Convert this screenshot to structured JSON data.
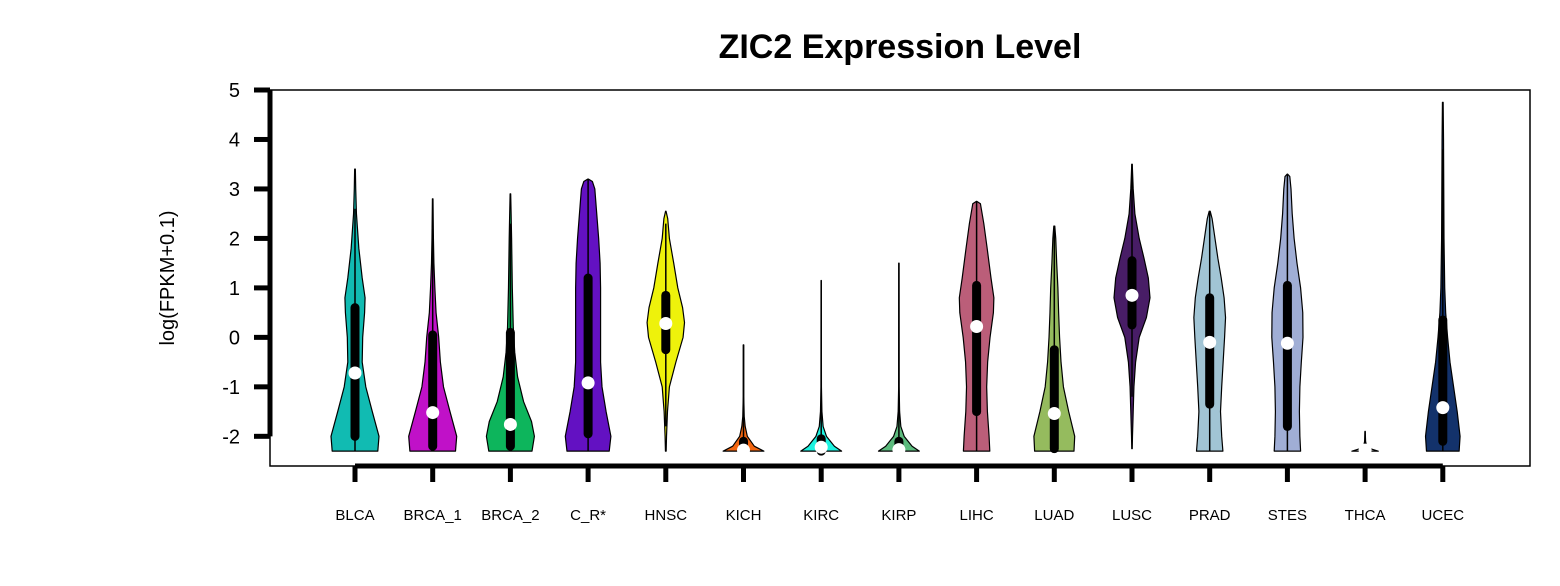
{
  "chart_data": {
    "type": "violin",
    "title": "ZIC2 Expression Level",
    "ylabel": "log(FPKM+0.1)",
    "xlabel": "",
    "ylim": [
      -2.6,
      5
    ],
    "yticks": [
      -2,
      -1,
      0,
      1,
      2,
      3,
      4,
      5
    ],
    "grid": false,
    "categories": [
      "BLCA",
      "BRCA_1",
      "BRCA_2",
      "C_R*",
      "HNSC",
      "KICH",
      "KIRC",
      "KIRP",
      "LIHC",
      "LUAD",
      "LUSC",
      "PRAD",
      "STES",
      "THCA",
      "UCEC"
    ],
    "series": [
      {
        "category": "BLCA",
        "color": "#11bbb2",
        "min": -2.3,
        "max": 3.4,
        "q1": -2.0,
        "q3": 0.6,
        "median": -0.72,
        "whisker_low": -2.3,
        "whisker_high": 2.6,
        "profile": [
          [
            -2.3,
            0.95
          ],
          [
            -2.0,
            1.0
          ],
          [
            -1.5,
            0.72
          ],
          [
            -1.0,
            0.45
          ],
          [
            -0.5,
            0.3
          ],
          [
            0,
            0.32
          ],
          [
            0.5,
            0.4
          ],
          [
            0.8,
            0.42
          ],
          [
            1.2,
            0.3
          ],
          [
            1.8,
            0.16
          ],
          [
            2.5,
            0.06
          ],
          [
            3.0,
            0.03
          ],
          [
            3.4,
            0.015
          ]
        ]
      },
      {
        "category": "BRCA_1",
        "color": "#c011c8",
        "min": -2.3,
        "max": 2.8,
        "q1": -2.2,
        "q3": 0.05,
        "median": -1.52,
        "whisker_low": -2.3,
        "whisker_high": 2.2,
        "profile": [
          [
            -2.3,
            0.95
          ],
          [
            -2.0,
            1.0
          ],
          [
            -1.5,
            0.72
          ],
          [
            -1.0,
            0.45
          ],
          [
            -0.5,
            0.32
          ],
          [
            0,
            0.25
          ],
          [
            0.5,
            0.14
          ],
          [
            1.0,
            0.09
          ],
          [
            1.5,
            0.05
          ],
          [
            2.0,
            0.03
          ],
          [
            2.8,
            0.012
          ]
        ]
      },
      {
        "category": "BRCA_2",
        "color": "#0db55c",
        "min": -2.3,
        "max": 2.9,
        "q1": -2.2,
        "q3": 0.1,
        "median": -1.76,
        "whisker_low": -2.3,
        "whisker_high": 2.3,
        "profile": [
          [
            -2.3,
            0.9
          ],
          [
            -2.0,
            1.0
          ],
          [
            -1.7,
            0.88
          ],
          [
            -1.3,
            0.55
          ],
          [
            -0.8,
            0.3
          ],
          [
            -0.3,
            0.18
          ],
          [
            0.2,
            0.12
          ],
          [
            1.0,
            0.08
          ],
          [
            2.0,
            0.05
          ],
          [
            2.5,
            0.03
          ],
          [
            2.9,
            0.012
          ]
        ]
      },
      {
        "category": "C_R*",
        "color": "#6311c2",
        "min": -2.3,
        "max": 3.2,
        "q1": -1.95,
        "q3": 1.2,
        "median": -0.92,
        "whisker_low": -2.3,
        "whisker_high": 3.2,
        "profile": [
          [
            -2.3,
            0.88
          ],
          [
            -2.0,
            0.95
          ],
          [
            -1.5,
            0.75
          ],
          [
            -1.0,
            0.58
          ],
          [
            -0.5,
            0.52
          ],
          [
            0,
            0.52
          ],
          [
            0.5,
            0.52
          ],
          [
            1.0,
            0.52
          ],
          [
            1.5,
            0.5
          ],
          [
            2.0,
            0.44
          ],
          [
            2.5,
            0.36
          ],
          [
            3.0,
            0.28
          ],
          [
            3.15,
            0.18
          ],
          [
            3.2,
            0.01
          ]
        ]
      },
      {
        "category": "HNSC",
        "color": "#eef20b",
        "min": -2.3,
        "max": 2.55,
        "q1": -0.25,
        "q3": 0.85,
        "median": 0.28,
        "whisker_low": -1.8,
        "whisker_high": 2.3,
        "profile": [
          [
            -2.3,
            0.015
          ],
          [
            -2.0,
            0.03
          ],
          [
            -1.5,
            0.07
          ],
          [
            -1.0,
            0.15
          ],
          [
            -0.5,
            0.42
          ],
          [
            0,
            0.72
          ],
          [
            0.3,
            0.78
          ],
          [
            0.6,
            0.7
          ],
          [
            1.0,
            0.5
          ],
          [
            1.5,
            0.33
          ],
          [
            2.0,
            0.15
          ],
          [
            2.4,
            0.08
          ],
          [
            2.55,
            0.01
          ]
        ]
      },
      {
        "category": "KICH",
        "color": "#f26611",
        "min": -2.3,
        "max": -0.15,
        "q1": -2.3,
        "q3": -2.1,
        "median": -2.28,
        "whisker_low": -2.3,
        "whisker_high": -0.15,
        "profile": [
          [
            -2.3,
            0.85
          ],
          [
            -2.2,
            0.45
          ],
          [
            -2.0,
            0.16
          ],
          [
            -1.8,
            0.07
          ],
          [
            -1.6,
            0.03
          ],
          [
            -1.2,
            0.01
          ],
          [
            -0.15,
            0.008
          ]
        ]
      },
      {
        "category": "KIRC",
        "color": "#1df2e0",
        "min": -2.3,
        "max": 1.15,
        "q1": -2.3,
        "q3": -2.05,
        "median": -2.22,
        "whisker_low": -2.3,
        "whisker_high": 1.15,
        "profile": [
          [
            -2.3,
            0.85
          ],
          [
            -2.2,
            0.55
          ],
          [
            -2.0,
            0.22
          ],
          [
            -1.8,
            0.08
          ],
          [
            -1.5,
            0.03
          ],
          [
            -1.0,
            0.01
          ],
          [
            1.15,
            0.005
          ]
        ]
      },
      {
        "category": "KIRP",
        "color": "#5dbb7e",
        "min": -2.3,
        "max": 1.5,
        "q1": -2.3,
        "q3": -2.1,
        "median": -2.27,
        "whisker_low": -2.3,
        "whisker_high": 1.5,
        "profile": [
          [
            -2.3,
            0.85
          ],
          [
            -2.2,
            0.55
          ],
          [
            -2.0,
            0.22
          ],
          [
            -1.8,
            0.08
          ],
          [
            -1.5,
            0.03
          ],
          [
            -1.0,
            0.01
          ],
          [
            1.5,
            0.005
          ]
        ]
      },
      {
        "category": "LIHC",
        "color": "#bb5e79",
        "min": -2.3,
        "max": 2.75,
        "q1": -1.5,
        "q3": 1.05,
        "median": 0.22,
        "whisker_low": -2.3,
        "whisker_high": 2.75,
        "profile": [
          [
            -2.3,
            0.55
          ],
          [
            -2.0,
            0.52
          ],
          [
            -1.5,
            0.45
          ],
          [
            -1.0,
            0.42
          ],
          [
            -0.5,
            0.46
          ],
          [
            0,
            0.56
          ],
          [
            0.5,
            0.7
          ],
          [
            0.8,
            0.72
          ],
          [
            1.2,
            0.6
          ],
          [
            1.8,
            0.44
          ],
          [
            2.3,
            0.3
          ],
          [
            2.7,
            0.16
          ],
          [
            2.75,
            0.01
          ]
        ]
      },
      {
        "category": "LUAD",
        "color": "#95bb5e",
        "min": -2.3,
        "max": 2.25,
        "q1": -2.25,
        "q3": -0.25,
        "median": -1.54,
        "whisker_low": -2.3,
        "whisker_high": 2.25,
        "profile": [
          [
            -2.3,
            0.82
          ],
          [
            -2.0,
            0.85
          ],
          [
            -1.5,
            0.6
          ],
          [
            -1.0,
            0.38
          ],
          [
            -0.5,
            0.28
          ],
          [
            0,
            0.22
          ],
          [
            0.5,
            0.18
          ],
          [
            1.0,
            0.15
          ],
          [
            1.5,
            0.1
          ],
          [
            2.0,
            0.06
          ],
          [
            2.25,
            0.02
          ]
        ]
      },
      {
        "category": "LUSC",
        "color": "#481d66",
        "min": -2.25,
        "max": 3.5,
        "q1": 0.25,
        "q3": 1.55,
        "median": 0.85,
        "whisker_low": -1.2,
        "whisker_high": 3.5,
        "profile": [
          [
            -2.25,
            0.01
          ],
          [
            -2.0,
            0.02
          ],
          [
            -1.5,
            0.05
          ],
          [
            -1.0,
            0.08
          ],
          [
            -0.5,
            0.15
          ],
          [
            0,
            0.3
          ],
          [
            0.4,
            0.6
          ],
          [
            0.8,
            0.75
          ],
          [
            1.2,
            0.68
          ],
          [
            1.6,
            0.5
          ],
          [
            2.0,
            0.3
          ],
          [
            2.5,
            0.12
          ],
          [
            3.0,
            0.05
          ],
          [
            3.5,
            0.01
          ]
        ]
      },
      {
        "category": "PRAD",
        "color": "#a1c4d4",
        "min": -2.3,
        "max": 2.55,
        "q1": -1.35,
        "q3": 0.8,
        "median": -0.1,
        "whisker_low": -2.3,
        "whisker_high": 2.55,
        "profile": [
          [
            -2.3,
            0.55
          ],
          [
            -2.0,
            0.5
          ],
          [
            -1.5,
            0.45
          ],
          [
            -1.0,
            0.5
          ],
          [
            -0.5,
            0.56
          ],
          [
            0,
            0.62
          ],
          [
            0.4,
            0.66
          ],
          [
            0.8,
            0.6
          ],
          [
            1.2,
            0.48
          ],
          [
            1.6,
            0.34
          ],
          [
            2.0,
            0.22
          ],
          [
            2.4,
            0.1
          ],
          [
            2.55,
            0.02
          ]
        ]
      },
      {
        "category": "STES",
        "color": "#a0aed5",
        "min": -2.3,
        "max": 3.3,
        "q1": -1.8,
        "q3": 1.05,
        "median": -0.12,
        "whisker_low": -2.3,
        "whisker_high": 3.3,
        "profile": [
          [
            -2.3,
            0.55
          ],
          [
            -2.0,
            0.52
          ],
          [
            -1.5,
            0.5
          ],
          [
            -1.0,
            0.52
          ],
          [
            -0.5,
            0.58
          ],
          [
            0,
            0.65
          ],
          [
            0.5,
            0.64
          ],
          [
            1.0,
            0.55
          ],
          [
            1.5,
            0.4
          ],
          [
            2.0,
            0.28
          ],
          [
            2.5,
            0.2
          ],
          [
            3.0,
            0.15
          ],
          [
            3.25,
            0.1
          ],
          [
            3.3,
            0.01
          ]
        ]
      },
      {
        "category": "THCA",
        "color": "#c8c8c8",
        "min": -2.3,
        "max": -1.9,
        "q1": -2.3,
        "q3": -2.25,
        "median": -2.28,
        "whisker_low": -2.3,
        "whisker_high": -1.9,
        "profile": [
          [
            -2.3,
            0.55
          ],
          [
            -2.25,
            0.22
          ],
          [
            -2.2,
            0.06
          ],
          [
            -2.1,
            0.02
          ],
          [
            -1.9,
            0.005
          ]
        ]
      },
      {
        "category": "UCEC",
        "color": "#13326b",
        "min": -2.3,
        "max": 4.75,
        "q1": -2.1,
        "q3": 0.35,
        "median": -1.42,
        "whisker_low": -2.3,
        "whisker_high": 3.8,
        "profile": [
          [
            -2.3,
            0.68
          ],
          [
            -2.0,
            0.72
          ],
          [
            -1.5,
            0.6
          ],
          [
            -1.0,
            0.45
          ],
          [
            -0.5,
            0.3
          ],
          [
            0,
            0.2
          ],
          [
            0.5,
            0.12
          ],
          [
            1.0,
            0.08
          ],
          [
            2.0,
            0.05
          ],
          [
            3.0,
            0.04
          ],
          [
            4.0,
            0.03
          ],
          [
            4.75,
            0.015
          ]
        ]
      }
    ]
  }
}
